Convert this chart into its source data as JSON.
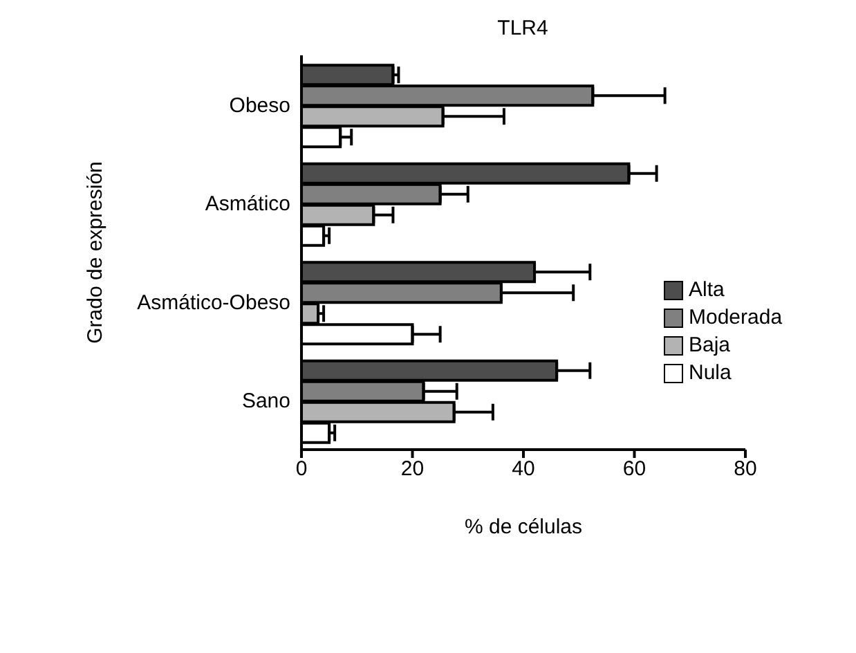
{
  "chart_data": {
    "type": "bar",
    "orientation": "horizontal",
    "title": "TLR4",
    "xlabel": "% de células",
    "ylabel": "Grado de expresión",
    "categories": [
      "Obeso",
      "Asmático",
      "Asmático-Obeso",
      "Sano"
    ],
    "series": [
      {
        "name": "Alta",
        "color": "#4d4d4d",
        "values": [
          16.5,
          59,
          42,
          46
        ],
        "errors": [
          [
            16.5,
            17.5
          ],
          [
            59,
            64
          ],
          [
            42,
            52
          ],
          [
            46,
            52
          ]
        ]
      },
      {
        "name": "Moderada",
        "color": "#808080",
        "values": [
          52.5,
          25,
          36,
          22
        ],
        "errors": [
          [
            52.5,
            65.5
          ],
          [
            25,
            30
          ],
          [
            36,
            49
          ],
          [
            22,
            28
          ]
        ]
      },
      {
        "name": "Baja",
        "color": "#b3b3b3",
        "values": [
          25.5,
          13,
          3,
          27.5
        ],
        "errors": [
          [
            25.5,
            36.5
          ],
          [
            13,
            16.5
          ],
          [
            3,
            4
          ],
          [
            27.5,
            34.5
          ]
        ]
      },
      {
        "name": "Nula",
        "color": "#ffffff",
        "values": [
          7,
          4,
          20,
          5
        ],
        "errors": [
          [
            7,
            9
          ],
          [
            4,
            5
          ],
          [
            20,
            25
          ],
          [
            5,
            6
          ]
        ]
      }
    ],
    "xlim": [
      0,
      80
    ],
    "xticks": [
      0,
      20,
      40,
      60,
      80
    ],
    "legend": "right"
  }
}
